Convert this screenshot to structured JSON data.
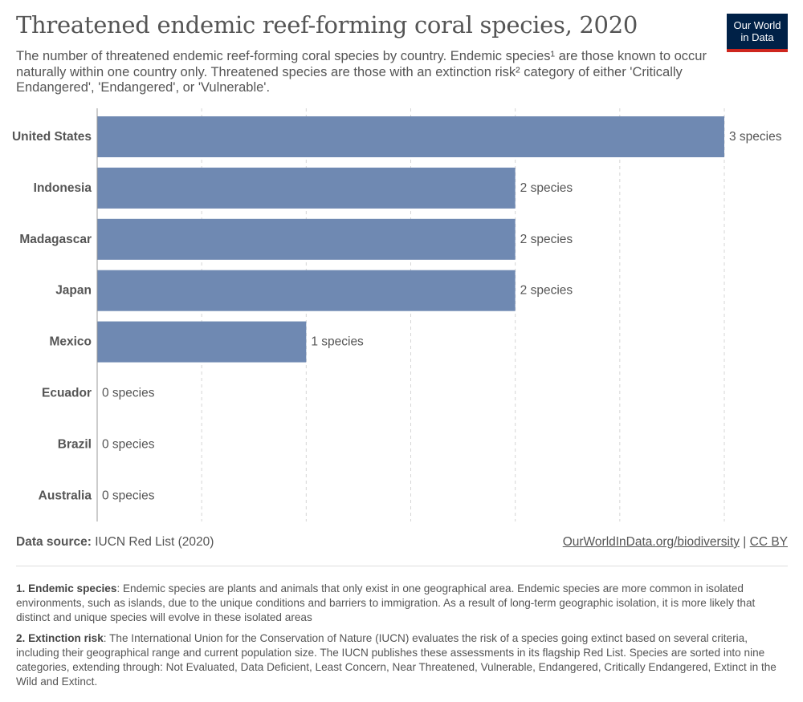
{
  "header": {
    "title": "Threatened endemic reef-forming coral species, 2020",
    "subtitle": "The number of threatened endemic reef-forming coral species by country. Endemic species¹ are those known to occur naturally within one country only. Threatened species are those with an extinction risk² category of either 'Critically Endangered', 'Endangered', or 'Vulnerable'.",
    "logo_line1": "Our World",
    "logo_line2": "in Data"
  },
  "chart_data": {
    "type": "bar",
    "orientation": "horizontal",
    "categories": [
      "United States",
      "Indonesia",
      "Madagascar",
      "Japan",
      "Mexico",
      "Ecuador",
      "Brazil",
      "Australia"
    ],
    "values": [
      3,
      2,
      2,
      2,
      1,
      0,
      0,
      0
    ],
    "value_labels": [
      "3 species",
      "2 species",
      "2 species",
      "2 species",
      "1 species",
      "0 species",
      "0 species",
      "0 species"
    ],
    "xlim": [
      0,
      3
    ],
    "gridlines": [
      0.5,
      1,
      1.5,
      2,
      2.5,
      3
    ],
    "grid": true,
    "bar_color": "#6f89b2"
  },
  "footer": {
    "source_label": "Data source:",
    "source_text": "IUCN Red List (2020)",
    "link_text": "OurWorldInData.org/biodiversity",
    "separator": "|",
    "license_text": "CC BY"
  },
  "notes": [
    {
      "heading": "1. Endemic species",
      "text": ": Endemic species are plants and animals that only exist in one geographical area. Endemic species are more common in isolated environments, such as islands, due to the unique conditions and barriers to immigration. As a result of long-term geographic isolation, it is more likely that distinct and unique species will evolve in these isolated areas"
    },
    {
      "heading": "2. Extinction risk",
      "text": ": The International Union for the Conservation of Nature (IUCN) evaluates the risk of a species going extinct based on several criteria, including their geographical range and current population size. The IUCN publishes these assessments in its flagship Red List. Species are sorted into nine categories, extending through: Not Evaluated, Data Deficient, Least Concern, Near Threatened, Vulnerable, Endangered, Critically Endangered, Extinct in the Wild and Extinct."
    }
  ]
}
